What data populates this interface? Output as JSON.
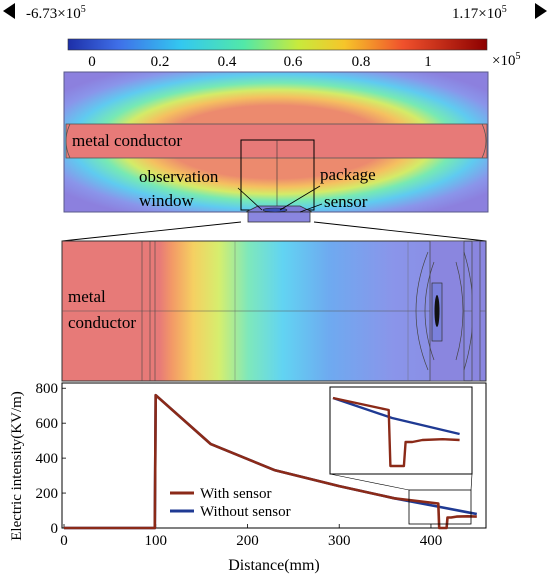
{
  "colorbar": {
    "min_label": "-6.73×10",
    "min_exp": "5",
    "max_label": "1.17×10",
    "max_exp": "5",
    "ticks": [
      "0",
      "0.2",
      "0.4",
      "0.6",
      "0.8",
      "1"
    ],
    "multiplier": "×10",
    "multiplier_exp": "5"
  },
  "top_panel": {
    "conductor_label": "metal conductor",
    "window_label_1": "observation",
    "window_label_2": "window",
    "package_label": "package",
    "sensor_label": "sensor"
  },
  "mid_panel": {
    "conductor_label_1": "metal",
    "conductor_label_2": "conductor"
  },
  "chart_data": {
    "type": "line",
    "xlabel": "Distance(mm)",
    "ylabel": "Electric intensity(KV/m)",
    "xlim": [
      0,
      460
    ],
    "ylim": [
      0,
      830
    ],
    "xticks": [
      "0",
      "100",
      "200",
      "300",
      "400"
    ],
    "yticks": [
      "0",
      "200",
      "400",
      "600",
      "800"
    ],
    "legend_placement": "bottom-center",
    "series": [
      {
        "name": "With sensor",
        "color": "#8b2a18",
        "x": [
          0,
          99,
          100,
          160,
          230,
          300,
          360,
          408,
          409,
          412,
          417,
          418,
          422,
          428,
          440,
          450
        ],
        "y": [
          0,
          0,
          760,
          480,
          330,
          240,
          170,
          140,
          0,
          0,
          0,
          60,
          60,
          65,
          67,
          65
        ]
      },
      {
        "name": "Without sensor",
        "color": "#1f3a93",
        "x": [
          0,
          99,
          100,
          160,
          230,
          300,
          360,
          410,
          440,
          450
        ],
        "y": [
          0,
          0,
          760,
          480,
          330,
          240,
          170,
          120,
          90,
          80
        ]
      }
    ]
  }
}
